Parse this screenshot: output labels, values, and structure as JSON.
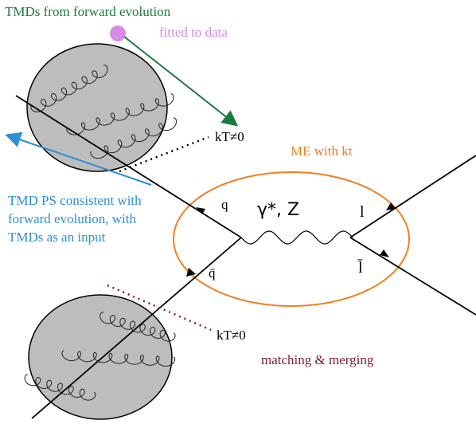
{
  "labels": {
    "tmds_forward": "TMDs from forward evolution",
    "fitted": "fitted to data",
    "kt_top": "kT≠0",
    "me_kt": "ME with kt",
    "tmd_ps": [
      "TMD PS consistent with",
      "forward evolution, with",
      "TMDs as an input"
    ],
    "q": "q",
    "qbar": "q̄",
    "boson": "γ*, Z",
    "lepton": "l",
    "antilepton": "l̄",
    "kt_bottom": "kT≠0",
    "matching": "matching & merging"
  }
}
